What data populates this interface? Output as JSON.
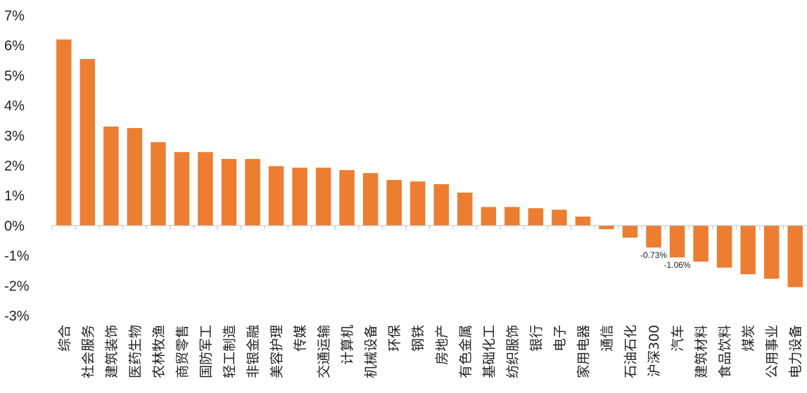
{
  "chart_data": {
    "type": "bar",
    "title": "",
    "xlabel": "",
    "ylabel": "",
    "ylim": [
      -3,
      7
    ],
    "yticks": [
      -3,
      -2,
      -1,
      0,
      1,
      2,
      3,
      4,
      5,
      6,
      7
    ],
    "ytick_labels": [
      "-3%",
      "-2%",
      "-1%",
      "0%",
      "1%",
      "2%",
      "3%",
      "4%",
      "5%",
      "6%",
      "7%"
    ],
    "grid": false,
    "legend": "none",
    "bar_color": "#ED7D31",
    "categories": [
      "综合",
      "社会服务",
      "建筑装饰",
      "医药生物",
      "农林牧渔",
      "商贸零售",
      "国防军工",
      "轻工制造",
      "非银金融",
      "美容护理",
      "传媒",
      "交通运输",
      "计算机",
      "机械设备",
      "环保",
      "钢铁",
      "房地产",
      "有色金属",
      "基础化工",
      "纺织服饰",
      "银行",
      "电子",
      "家用电器",
      "通信",
      "石油石化",
      "沪深300",
      "汽车",
      "建筑材料",
      "食品饮料",
      "煤炭",
      "公用事业",
      "电力设备"
    ],
    "values": [
      6.2,
      5.55,
      3.3,
      3.25,
      2.78,
      2.45,
      2.45,
      2.22,
      2.22,
      1.98,
      1.93,
      1.93,
      1.85,
      1.75,
      1.52,
      1.47,
      1.38,
      1.1,
      0.62,
      0.62,
      0.58,
      0.53,
      0.3,
      -0.12,
      -0.4,
      -0.73,
      -1.06,
      -1.2,
      -1.4,
      -1.62,
      -1.77,
      -2.05
    ],
    "data_labels": [
      {
        "index": 25,
        "text": "-0.73%"
      },
      {
        "index": 26,
        "text": "-1.06%"
      }
    ]
  }
}
